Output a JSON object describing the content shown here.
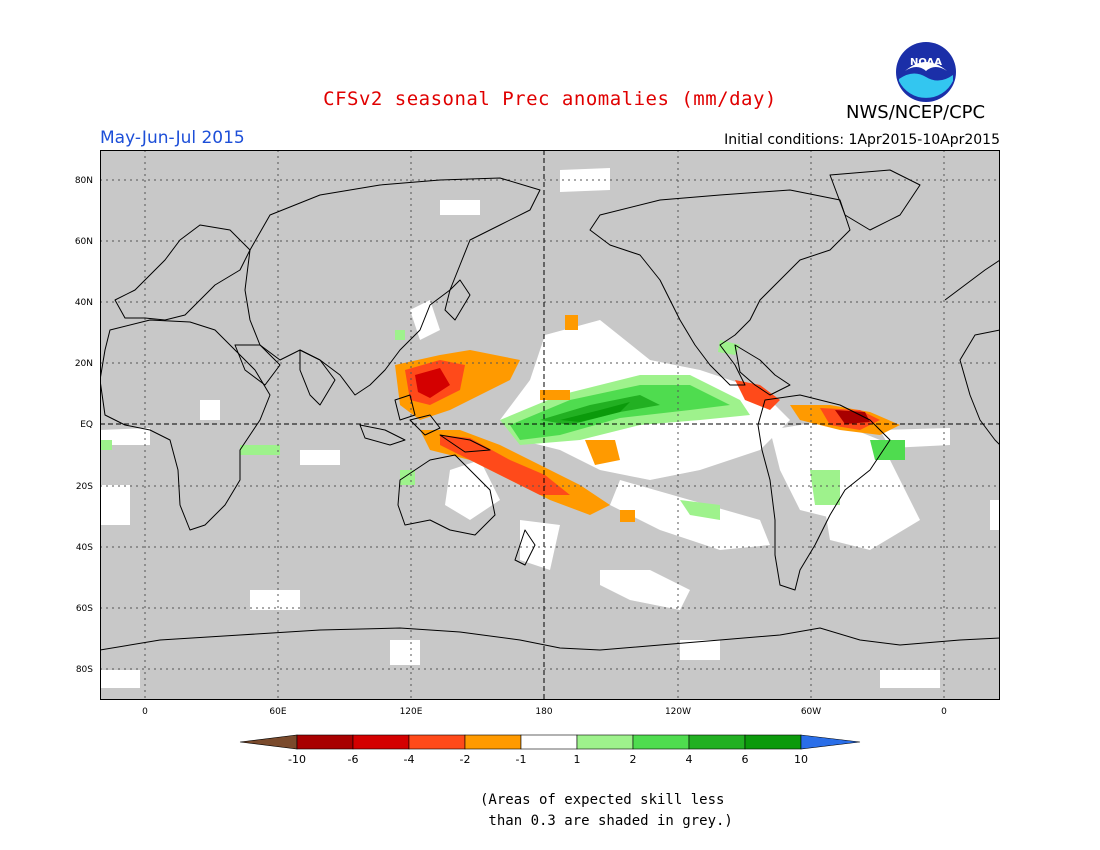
{
  "header": {
    "title": "CFSv2 seasonal Prec anomalies (mm/day)",
    "season": "May-Jun-Jul 2015",
    "initial_conditions": "Initial conditions: 1Apr2015-10Apr2015",
    "agency": "NWS/NCEP/CPC",
    "logo_text": "NOAA"
  },
  "axes": {
    "lat_labels": [
      "80N",
      "60N",
      "40N",
      "20N",
      "EQ",
      "20S",
      "40S",
      "60S",
      "80S"
    ],
    "lon_labels": [
      "0",
      "60E",
      "120E",
      "180",
      "120W",
      "60W",
      "0"
    ]
  },
  "colorbar": {
    "labels": [
      "-10",
      "-6",
      "-4",
      "-2",
      "-1",
      "1",
      "2",
      "4",
      "6",
      "10"
    ],
    "colors": [
      "#7a4a2c",
      "#a80000",
      "#d40000",
      "#ff4a1a",
      "#ff9a00",
      "#ffffff",
      "#9ef28c",
      "#4fdc4f",
      "#22b022",
      "#0b9a0b",
      "#2a6ee8"
    ]
  },
  "map": {
    "land_outline_color": "#000000",
    "background": "#c8c8c8",
    "skill_note": "Areas of expected skill less than 0.3 are shaded in grey"
  },
  "note": {
    "line1": "(Areas of expected skill less",
    "line2": " than 0.3 are shaded in grey.)"
  }
}
